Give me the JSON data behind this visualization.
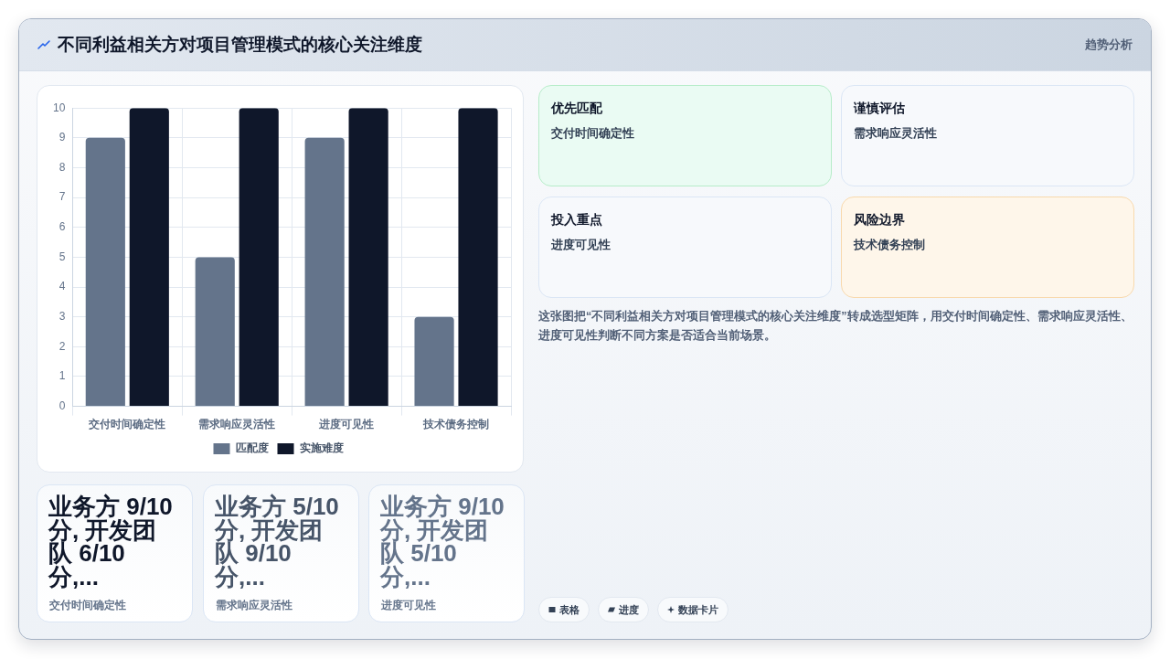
{
  "chart_data": {
    "type": "bar",
    "title": "不同利益相关方对项目管理模式的核心关注维度",
    "categories": [
      "交付时间确定性",
      "需求响应灵活性",
      "进度可见性",
      "技术债务控制"
    ],
    "series": [
      {
        "name": "匹配度",
        "color": "#64748b",
        "values": [
          9,
          5,
          9,
          3
        ]
      },
      {
        "name": "实施难度",
        "color": "#0f172a",
        "values": [
          10,
          10,
          10,
          10
        ]
      }
    ],
    "ylim": [
      0,
      10
    ],
    "yticks": [
      0,
      1,
      2,
      3,
      4,
      5,
      6,
      7,
      8,
      9,
      10
    ],
    "grid": true,
    "legend": "bottom",
    "annotations": [
      "趋势分析",
      "优先匹配",
      "交付时间确定性",
      "谨慎评估",
      "需求响应灵活性",
      "投入重点",
      "进度可见性",
      "风险边界",
      "技术债务控制",
      "这张图把“不同利益相关方对项目管理模式的核心关注维度”转成选型矩阵，用交付时间确定性、需求响应灵活性、进度可见性判断不同方案是否适合当前场景。",
      "业务方 9/10 分, 开发团队 6/10 分,...",
      "交付时间确定性",
      "业务方 5/10 分, 开发团队 9/10 分,...",
      "需求响应灵活性",
      "业务方 9/10 分, 开发团队 5/10 分,...",
      "进度可见性",
      "表格",
      "进度",
      "数据卡片"
    ]
  }
}
